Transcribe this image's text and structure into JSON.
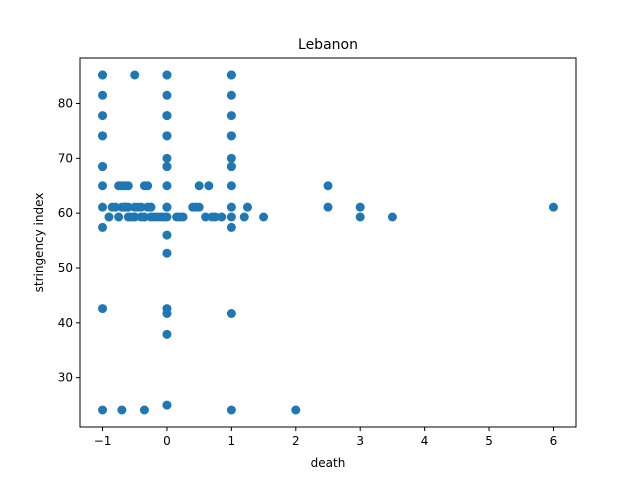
{
  "chart_data": {
    "type": "scatter",
    "title": "Lebanon",
    "xlabel": "death",
    "ylabel": "stringency index",
    "xlim": [
      -1.35,
      6.35
    ],
    "ylim": [
      21.0,
      88.3
    ],
    "xticks": [
      -1,
      0,
      1,
      2,
      3,
      4,
      5,
      6
    ],
    "yticks": [
      30,
      40,
      50,
      60,
      70,
      80
    ],
    "grid": false,
    "marker_color": "#1f77b4",
    "series": [
      {
        "x": [
          -1,
          -1,
          -1,
          -1,
          -1,
          -1,
          -1,
          -1,
          -1,
          -1,
          -1,
          -1,
          -1,
          -0.9,
          -0.85,
          -0.8,
          -0.75,
          -0.7,
          -0.65,
          -0.6,
          -0.55,
          -0.5,
          -0.45,
          -0.4,
          -0.35,
          -0.3,
          -0.25,
          -0.2,
          -0.15,
          -0.75,
          -0.7,
          -0.65,
          -0.6,
          -0.5,
          -0.5,
          -0.4,
          -0.35,
          -0.3,
          -0.25,
          -0.1,
          -0.05,
          -0.7,
          -0.65,
          -0.6,
          -0.35,
          -0.25,
          -0.5,
          -0.35,
          -0.65,
          0,
          0,
          0,
          0,
          0,
          0,
          0,
          0,
          0,
          0,
          0,
          0,
          0,
          0,
          0,
          0,
          0,
          0,
          0,
          0,
          0.15,
          0.25,
          0.4,
          0.45,
          0.5,
          0.5,
          0.6,
          0.65,
          0.7,
          0.75,
          0.85,
          0.2,
          1,
          1,
          1,
          1,
          1,
          1,
          1,
          1,
          1,
          1,
          1,
          1,
          1,
          1,
          1,
          1.2,
          1.25,
          1.5,
          2,
          2.5,
          2.5,
          3,
          3,
          3.5,
          6
        ],
        "y": [
          85.2,
          81.5,
          77.8,
          74.1,
          68.5,
          65,
          61.1,
          57.4,
          42.6,
          24.1,
          85.2,
          74.1,
          68.5,
          59.3,
          61.1,
          61.1,
          59.3,
          61.1,
          61.1,
          59.3,
          59.3,
          59.3,
          61.1,
          59.3,
          59.3,
          61.1,
          59.3,
          59.3,
          59.3,
          65,
          65,
          65,
          65,
          61.1,
          85.2,
          61.1,
          65,
          65,
          61.1,
          59.3,
          59.3,
          24.1,
          61.1,
          61.1,
          24.1,
          61.1,
          59.3,
          59.3,
          61.1,
          85.2,
          81.5,
          77.8,
          74.1,
          70,
          68.5,
          65,
          61.1,
          59.3,
          56,
          52.7,
          42.6,
          41.7,
          37.9,
          25.0,
          85.2,
          77.8,
          74.1,
          68.5,
          61.1,
          59.3,
          59.3,
          61.1,
          61.1,
          65,
          61.1,
          59.3,
          65,
          59.3,
          59.3,
          59.3,
          59.3,
          85.2,
          81.5,
          77.8,
          74.1,
          70,
          68.5,
          65,
          61.1,
          59.3,
          57.4,
          41.7,
          24.1,
          85.2,
          74.1,
          68.5,
          59.3,
          61.1,
          59.3,
          24.1,
          65,
          61.1,
          61.1,
          59.3,
          59.3,
          61.1
        ]
      }
    ]
  }
}
